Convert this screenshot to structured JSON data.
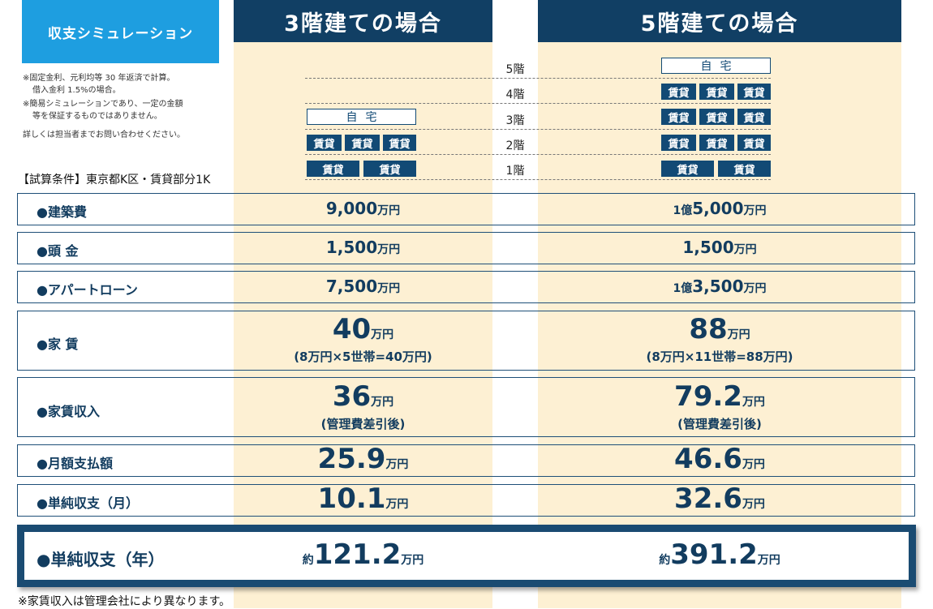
{
  "tag": "収支シミュレーション",
  "headers": {
    "three": "3階建ての場合",
    "five": "5階建ての場合"
  },
  "notes": [
    "※固定金利、元利均等 30 年返済で計算。",
    "借入金利 1.5%の場合。",
    "※簡易シミュレーションであり、一定の金額",
    "等を保証するものではありません。",
    "詳しくは担当者までお問い合わせください。"
  ],
  "conditions": "【試算条件】東京都K区・賃貸部分1K",
  "floors": [
    "5階",
    "4階",
    "3階",
    "2階",
    "1階"
  ],
  "unit_labels": {
    "home": "自宅",
    "rental": "賃貸"
  },
  "rows": [
    {
      "label": "●建築費",
      "three": {
        "pre": "",
        "num": "9,000",
        "unit": "万円",
        "sub": ""
      },
      "five": {
        "pre": "1億",
        "num": "5,000",
        "unit": "万円",
        "sub": ""
      }
    },
    {
      "label": "●頭 金",
      "three": {
        "pre": "",
        "num": "1,500",
        "unit": "万円",
        "sub": ""
      },
      "five": {
        "pre": "",
        "num": "1,500",
        "unit": "万円",
        "sub": ""
      }
    },
    {
      "label": "●アパートローン",
      "three": {
        "pre": "",
        "num": "7,500",
        "unit": "万円",
        "sub": ""
      },
      "five": {
        "pre": "1億",
        "num": "3,500",
        "unit": "万円",
        "sub": ""
      }
    },
    {
      "label": "●家 賃",
      "three": {
        "pre": "",
        "num": "40",
        "unit": "万円",
        "sub": "(8万円×5世帯=40万円)"
      },
      "five": {
        "pre": "",
        "num": "88",
        "unit": "万円",
        "sub": "(8万円×11世帯=88万円)"
      }
    },
    {
      "label": "●家賃収入",
      "three": {
        "pre": "",
        "num": "36",
        "unit": "万円",
        "sub": "(管理費差引後)"
      },
      "five": {
        "pre": "",
        "num": "79.2",
        "unit": "万円",
        "sub": "(管理費差引後)"
      }
    },
    {
      "label": "●月額支払額",
      "three": {
        "pre": "",
        "num": "25.9",
        "unit": "万円",
        "sub": ""
      },
      "five": {
        "pre": "",
        "num": "46.6",
        "unit": "万円",
        "sub": ""
      }
    },
    {
      "label": "●単純収支（月）",
      "three": {
        "pre": "",
        "num": "10.1",
        "unit": "万円",
        "sub": ""
      },
      "five": {
        "pre": "",
        "num": "32.6",
        "unit": "万円",
        "sub": ""
      }
    }
  ],
  "final": {
    "label": "●単純収支（年）",
    "three": {
      "pre": "約",
      "num": "121.2",
      "unit": "万円"
    },
    "five": {
      "pre": "約",
      "num": "391.2",
      "unit": "万円"
    }
  },
  "footnote": "※家賃収入は管理会社により異なります。"
}
